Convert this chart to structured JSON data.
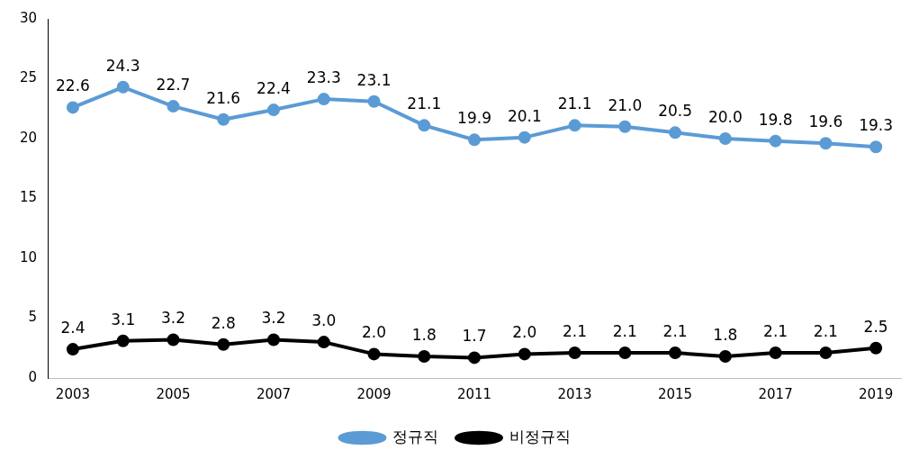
{
  "chart_data": {
    "type": "line",
    "categories": [
      "2003",
      null,
      "2005",
      null,
      "2007",
      null,
      "2009",
      null,
      "2011",
      null,
      "2013",
      null,
      "2015",
      null,
      "2017",
      null,
      "2019"
    ],
    "series": [
      {
        "name": "정규직",
        "color": "#5b9bd5",
        "values": [
          22.6,
          24.3,
          22.7,
          21.6,
          22.4,
          23.3,
          23.1,
          21.1,
          19.9,
          20.1,
          21.1,
          21.0,
          20.5,
          20.0,
          19.8,
          19.6,
          19.3
        ],
        "value_labels": [
          "22.6",
          "24.3",
          "22.7",
          "21.6",
          "22.4",
          "23.3",
          "23.1",
          "21.1",
          "19.9",
          "20.1",
          "21.1",
          "21.0",
          "20.5",
          "20.0",
          "19.8",
          "19.6",
          "19.3"
        ]
      },
      {
        "name": "비정규직",
        "color": "#000000",
        "values": [
          2.4,
          3.1,
          3.2,
          2.8,
          3.2,
          3.0,
          2.0,
          1.8,
          1.7,
          2.0,
          2.1,
          2.1,
          2.1,
          1.8,
          2.1,
          2.1,
          2.5
        ],
        "value_labels": [
          "2.4",
          "3.1",
          "3.2",
          "2.8",
          "3.2",
          "3.0",
          "2.0",
          "1.8",
          "1.7",
          "2.0",
          "2.1",
          "2.1",
          "2.1",
          "1.8",
          "2.1",
          "2.1",
          "2.5"
        ]
      }
    ],
    "ylim": [
      0,
      30
    ],
    "yticks": [
      0,
      5,
      10,
      15,
      20,
      25,
      30
    ],
    "grid": false,
    "legend": "bottom",
    "marker": "circle",
    "line_style": "solid"
  }
}
